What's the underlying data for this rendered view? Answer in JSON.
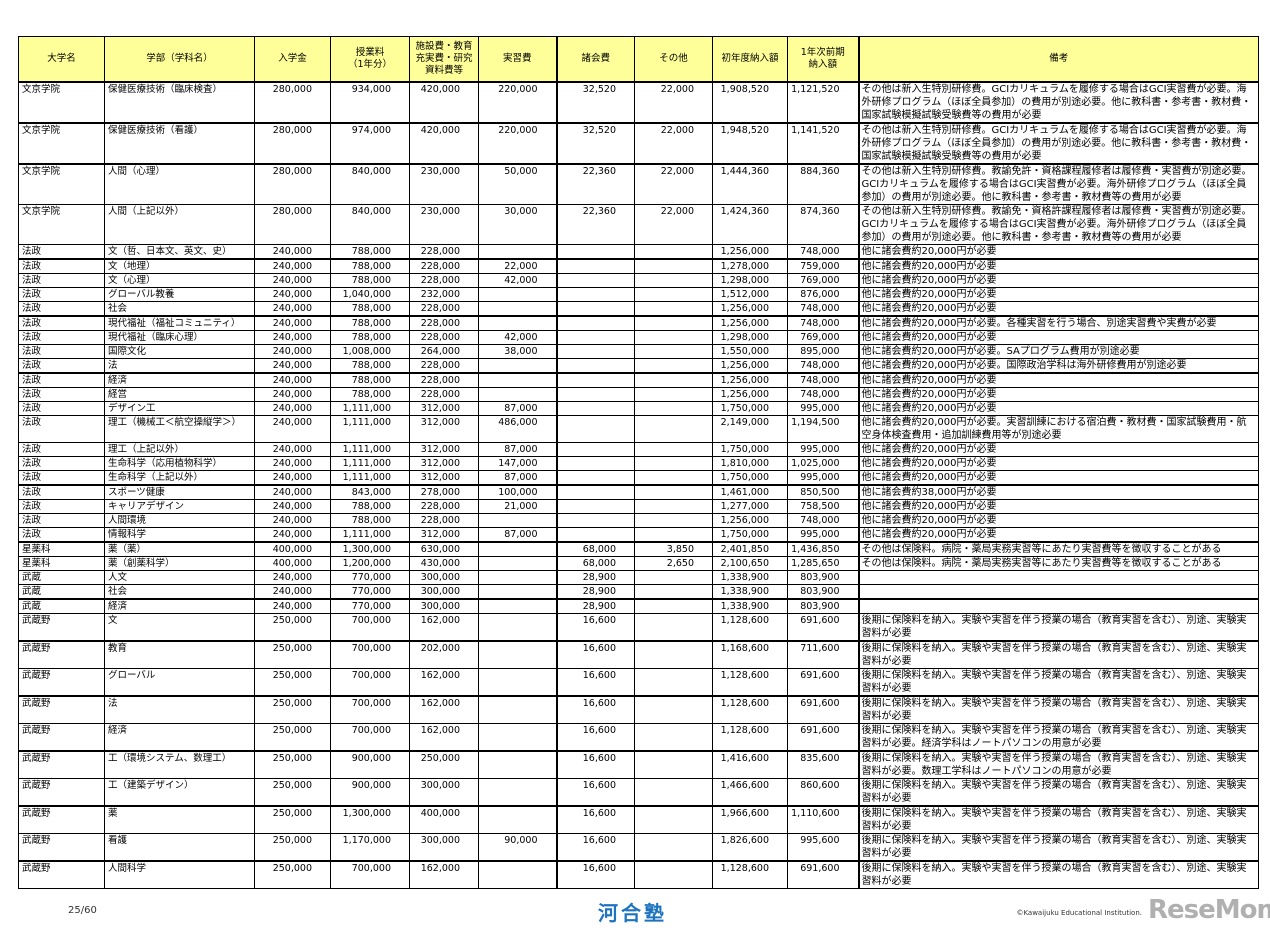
{
  "header": [
    "大学名",
    "学部（学科名）",
    "入学金",
    "授業料\n（1年分）",
    "施設費・教育\n充実費・研究\n資料費等",
    "実習費",
    "諸会費",
    "その他",
    "初年度納入額",
    "1年次前期\n納入額",
    "備考"
  ],
  "rows": [
    [
      "文京学院",
      "保健医療技術（臨床検査）",
      "280,000",
      "934,000",
      "420,000",
      "220,000",
      "32,520",
      "22,000",
      "1,908,520",
      "1,121,520",
      "その他は新入生特別研修費。GCIカリキュラムを履修する場合はGCI実習費が必要。海外研修プログラム（ほぼ全員参加）の費用が別途必要。他に教科書・参考書・教材費・国家試験模擬試験受験費等の費用が必要"
    ],
    [
      "文京学院",
      "保健医療技術（看護）",
      "280,000",
      "974,000",
      "420,000",
      "220,000",
      "32,520",
      "22,000",
      "1,948,520",
      "1,141,520",
      "その他は新入生特別研修費。GCIカリキュラムを履修する場合はGCI実習費が必要。海外研修プログラム（ほぼ全員参加）の費用が別途必要。他に教科書・参考書・教材費・国家試験模擬試験受験費等の費用が必要"
    ],
    [
      "文京学院",
      "人間（心理）",
      "280,000",
      "840,000",
      "230,000",
      "50,000",
      "22,360",
      "22,000",
      "1,444,360",
      "884,360",
      "その他は新入生特別研修費。教諭免許・資格課程履修者は履修費・実習費が別途必要。GCIカリキュラムを履修する場合はGCI実習費が必要。海外研修プログラム（ほぼ全員参加）の費用が別途必要。他に教科書・参考書・教材費等の費用が必要"
    ],
    [
      "文京学院",
      "人間（上記以外）",
      "280,000",
      "840,000",
      "230,000",
      "30,000",
      "22,360",
      "22,000",
      "1,424,360",
      "874,360",
      "その他は新入生特別研修費。教諭免・資格許課程履修者は履修費・実習費が別途必要。GCIカリキュラムを履修する場合はGCI実習費が必要。海外研修プログラム（ほぼ全員参加）の費用が別途必要。他に教科書・参考書・教材費等の費用が必要"
    ],
    [
      "法政",
      "文（哲、日本文、英文、史）",
      "240,000",
      "788,000",
      "228,000",
      "",
      "",
      "",
      "1,256,000",
      "748,000",
      "他に諸会費約20,000円が必要"
    ],
    [
      "法政",
      "文（地理）",
      "240,000",
      "788,000",
      "228,000",
      "22,000",
      "",
      "",
      "1,278,000",
      "759,000",
      "他に諸会費約20,000円が必要"
    ],
    [
      "法政",
      "文（心理）",
      "240,000",
      "788,000",
      "228,000",
      "42,000",
      "",
      "",
      "1,298,000",
      "769,000",
      "他に諸会費約20,000円が必要"
    ],
    [
      "法政",
      "グローバル教養",
      "240,000",
      "1,040,000",
      "232,000",
      "",
      "",
      "",
      "1,512,000",
      "876,000",
      "他に諸会費約20,000円が必要"
    ],
    [
      "法政",
      "社会",
      "240,000",
      "788,000",
      "228,000",
      "",
      "",
      "",
      "1,256,000",
      "748,000",
      "他に諸会費約20,000円が必要"
    ],
    [
      "法政",
      "現代福祉（福祉コミュニティ）",
      "240,000",
      "788,000",
      "228,000",
      "",
      "",
      "",
      "1,256,000",
      "748,000",
      "他に諸会費約20,000円が必要。各種実習を行う場合、別途実習費や実費が必要"
    ],
    [
      "法政",
      "現代福祉（臨床心理）",
      "240,000",
      "788,000",
      "228,000",
      "42,000",
      "",
      "",
      "1,298,000",
      "769,000",
      "他に諸会費約20,000円が必要"
    ],
    [
      "法政",
      "国際文化",
      "240,000",
      "1,008,000",
      "264,000",
      "38,000",
      "",
      "",
      "1,550,000",
      "895,000",
      "他に諸会費約20,000円が必要。SAプログラム費用が別途必要"
    ],
    [
      "法政",
      "法",
      "240,000",
      "788,000",
      "228,000",
      "",
      "",
      "",
      "1,256,000",
      "748,000",
      "他に諸会費約20,000円が必要。国際政治学科は海外研修費用が別途必要"
    ],
    [
      "法政",
      "経済",
      "240,000",
      "788,000",
      "228,000",
      "",
      "",
      "",
      "1,256,000",
      "748,000",
      "他に諸会費約20,000円が必要"
    ],
    [
      "法政",
      "経営",
      "240,000",
      "788,000",
      "228,000",
      "",
      "",
      "",
      "1,256,000",
      "748,000",
      "他に諸会費約20,000円が必要"
    ],
    [
      "法政",
      "デザイン工",
      "240,000",
      "1,111,000",
      "312,000",
      "87,000",
      "",
      "",
      "1,750,000",
      "995,000",
      "他に諸会費約20,000円が必要"
    ],
    [
      "法政",
      "理工（機械工＜航空操縦学＞）",
      "240,000",
      "1,111,000",
      "312,000",
      "486,000",
      "",
      "",
      "2,149,000",
      "1,194,500",
      "他に諸会費約20,000円が必要。実習訓練における宿泊費・教材費・国家試験費用・航空身体検査費用・追加訓練費用等が別途必要"
    ],
    [
      "法政",
      "理工（上記以外）",
      "240,000",
      "1,111,000",
      "312,000",
      "87,000",
      "",
      "",
      "1,750,000",
      "995,000",
      "他に諸会費約20,000円が必要"
    ],
    [
      "法政",
      "生命科学（応用植物科学）",
      "240,000",
      "1,111,000",
      "312,000",
      "147,000",
      "",
      "",
      "1,810,000",
      "1,025,000",
      "他に諸会費約20,000円が必要"
    ],
    [
      "法政",
      "生命科学（上記以外）",
      "240,000",
      "1,111,000",
      "312,000",
      "87,000",
      "",
      "",
      "1,750,000",
      "995,000",
      "他に諸会費約20,000円が必要"
    ],
    [
      "法政",
      "スポーツ健康",
      "240,000",
      "843,000",
      "278,000",
      "100,000",
      "",
      "",
      "1,461,000",
      "850,500",
      "他に諸会費約38,000円が必要"
    ],
    [
      "法政",
      "キャリアデザイン",
      "240,000",
      "788,000",
      "228,000",
      "21,000",
      "",
      "",
      "1,277,000",
      "758,500",
      "他に諸会費約20,000円が必要"
    ],
    [
      "法政",
      "人間環境",
      "240,000",
      "788,000",
      "228,000",
      "",
      "",
      "",
      "1,256,000",
      "748,000",
      "他に諸会費約20,000円が必要"
    ],
    [
      "法政",
      "情報科学",
      "240,000",
      "1,111,000",
      "312,000",
      "87,000",
      "",
      "",
      "1,750,000",
      "995,000",
      "他に諸会費約20,000円が必要"
    ],
    [
      "星薬科",
      "薬（薬）",
      "400,000",
      "1,300,000",
      "630,000",
      "",
      "68,000",
      "3,850",
      "2,401,850",
      "1,436,850",
      "その他は保険料。病院・薬局実務実習等にあたり実習費等を徴収することがある"
    ],
    [
      "星薬科",
      "薬（創薬科学）",
      "400,000",
      "1,200,000",
      "430,000",
      "",
      "68,000",
      "2,650",
      "2,100,650",
      "1,285,650",
      "その他は保険料。病院・薬局実務実習等にあたり実習費等を徴収することがある"
    ],
    [
      "武蔵",
      "人文",
      "240,000",
      "770,000",
      "300,000",
      "",
      "28,900",
      "",
      "1,338,900",
      "803,900",
      ""
    ],
    [
      "武蔵",
      "社会",
      "240,000",
      "770,000",
      "300,000",
      "",
      "28,900",
      "",
      "1,338,900",
      "803,900",
      ""
    ],
    [
      "武蔵",
      "経済",
      "240,000",
      "770,000",
      "300,000",
      "",
      "28,900",
      "",
      "1,338,900",
      "803,900",
      ""
    ],
    [
      "武蔵野",
      "文",
      "250,000",
      "700,000",
      "162,000",
      "",
      "16,600",
      "",
      "1,128,600",
      "691,600",
      "後期に保険料を納入。実験や実習を伴う授業の場合（教育実習を含む）、別途、実験実習料が必要"
    ],
    [
      "武蔵野",
      "教育",
      "250,000",
      "700,000",
      "202,000",
      "",
      "16,600",
      "",
      "1,168,600",
      "711,600",
      "後期に保険料を納入。実験や実習を伴う授業の場合（教育実習を含む）、別途、実験実習料が必要"
    ],
    [
      "武蔵野",
      "グローバル",
      "250,000",
      "700,000",
      "162,000",
      "",
      "16,600",
      "",
      "1,128,600",
      "691,600",
      "後期に保険料を納入。実験や実習を伴う授業の場合（教育実習を含む）、別途、実験実習料が必要"
    ],
    [
      "武蔵野",
      "法",
      "250,000",
      "700,000",
      "162,000",
      "",
      "16,600",
      "",
      "1,128,600",
      "691,600",
      "後期に保険料を納入。実験や実習を伴う授業の場合（教育実習を含む）、別途、実験実習料が必要"
    ],
    [
      "武蔵野",
      "経済",
      "250,000",
      "700,000",
      "162,000",
      "",
      "16,600",
      "",
      "1,128,600",
      "691,600",
      "後期に保険料を納入。実験や実習を伴う授業の場合（教育実習を含む）、別途、実験実習料が必要。経済学科はノートパソコンの用意が必要"
    ],
    [
      "武蔵野",
      "工（環境システム、数理工）",
      "250,000",
      "900,000",
      "250,000",
      "",
      "16,600",
      "",
      "1,416,600",
      "835,600",
      "後期に保険料を納入。実験や実習を伴う授業の場合（教育実習を含む）、別途、実験実習料が必要。数理工学科はノートパソコンの用意が必要"
    ],
    [
      "武蔵野",
      "工（建築デザイン）",
      "250,000",
      "900,000",
      "300,000",
      "",
      "16,600",
      "",
      "1,466,600",
      "860,600",
      "後期に保険料を納入。実験や実習を伴う授業の場合（教育実習を含む）、別途、実験実習料が必要"
    ],
    [
      "武蔵野",
      "薬",
      "250,000",
      "1,300,000",
      "400,000",
      "",
      "16,600",
      "",
      "1,966,600",
      "1,110,600",
      "後期に保険料を納入。実験や実習を伴う授業の場合（教育実習を含む）、別途、実験実習料が必要"
    ],
    [
      "武蔵野",
      "看護",
      "250,000",
      "1,170,000",
      "300,000",
      "90,000",
      "16,600",
      "",
      "1,826,600",
      "995,600",
      "後期に保険料を納入。実験や実習を伴う授業の場合（教育実習を含む）、別途、実験実習料が必要"
    ],
    [
      "武蔵野",
      "人間科学",
      "250,000",
      "700,000",
      "162,000",
      "",
      "16,600",
      "",
      "1,128,600",
      "691,600",
      "後期に保険料を納入。実験や実習を伴う授業の場合（教育実習を含む）、別途、実験実習料が必要"
    ]
  ],
  "footer": {
    "page": "25/60",
    "logo": "河合塾",
    "copyright": "©Kawaijuku Educational Institution.",
    "watermark": "ReseMom"
  },
  "colors": {
    "header_bg": "#ffff99",
    "logo": "#1e73be"
  }
}
